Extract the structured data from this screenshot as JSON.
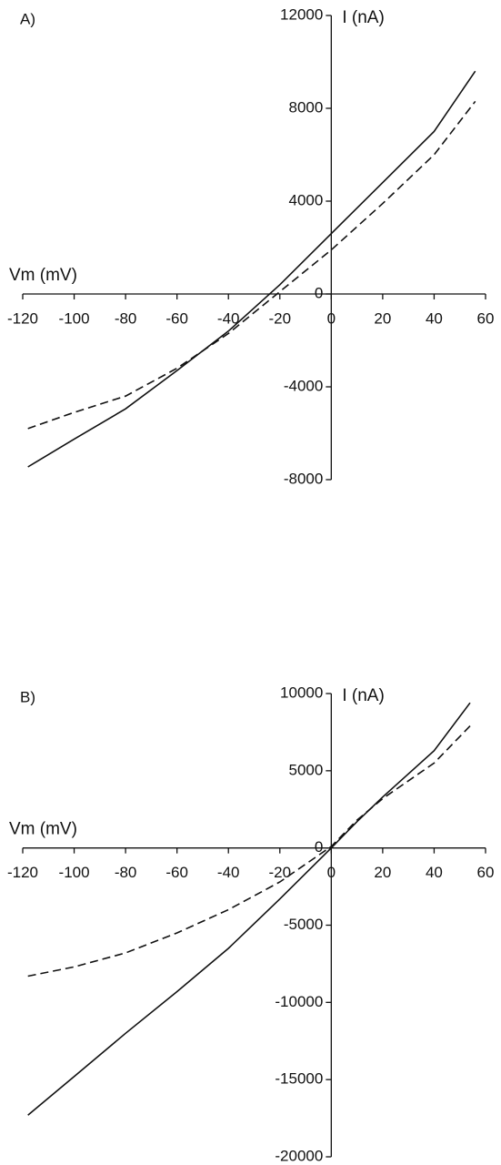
{
  "chart_data": [
    {
      "type": "line",
      "title": "A)",
      "x_label": "Vm (mV)",
      "y_label": "I (nA)",
      "x": [
        -118,
        -100,
        -80,
        -60,
        -40,
        -20,
        0,
        20,
        40,
        56
      ],
      "series": [
        {
          "color": "#111111",
          "dash": false,
          "values": [
            -7450,
            -6250,
            -4950,
            -3300,
            -1600,
            400,
            2600,
            4800,
            7000,
            9600
          ]
        },
        {
          "color": "#111111",
          "dash": true,
          "values": [
            -5800,
            -5100,
            -4400,
            -3200,
            -1700,
            100,
            1900,
            3900,
            6000,
            8300
          ]
        }
      ],
      "xlim": [
        -120,
        60
      ],
      "xticks": [
        -120,
        -100,
        -80,
        -60,
        -40,
        -20,
        0,
        20,
        40,
        60
      ],
      "ylim": [
        -8000,
        12000
      ],
      "yticks": [
        -8000,
        -4000,
        0,
        4000,
        8000,
        12000
      ],
      "grid": false
    },
    {
      "type": "line",
      "title": "B)",
      "x_label": "Vm (mV)",
      "y_label": "I (nA)",
      "x": [
        -118,
        -100,
        -80,
        -60,
        -40,
        -20,
        0,
        10,
        20,
        40,
        54
      ],
      "series": [
        {
          "color": "#111111",
          "dash": false,
          "values": [
            -17300,
            -14800,
            -12000,
            -9300,
            -6500,
            -3300,
            0,
            1700,
            3300,
            6300,
            9400
          ]
        },
        {
          "color": "#111111",
          "dash": true,
          "values": [
            -8300,
            -7700,
            -6800,
            -5500,
            -4000,
            -2200,
            100,
            1800,
            3200,
            5500,
            7900
          ]
        }
      ],
      "xlim": [
        -120,
        60
      ],
      "xticks": [
        -120,
        -100,
        -80,
        -60,
        -40,
        -20,
        0,
        20,
        40,
        60
      ],
      "ylim": [
        -20000,
        10000
      ],
      "yticks": [
        -20000,
        -15000,
        -10000,
        -5000,
        0,
        5000,
        10000
      ],
      "grid": false
    }
  ]
}
